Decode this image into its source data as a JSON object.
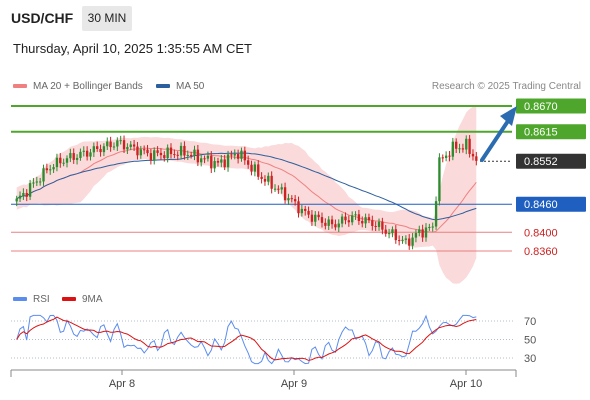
{
  "header": {
    "pair": "USD/CHF",
    "timeframe": "30 MIN",
    "timestamp": "Thursday, April 10, 2025 1:35:55 AM CET",
    "research": "Research © 2025 Trading Central"
  },
  "legend": {
    "ma20": "MA 20 + Bollinger Bands",
    "ma50": "MA 50",
    "rsi": "RSI",
    "rsi_ma": "9MA"
  },
  "colors": {
    "ma20": "#f08080",
    "ma50": "#2c5f9e",
    "band": "#fadadb",
    "up": "#2e8b2e",
    "down": "#cc2222",
    "resistance": "#4ea72c",
    "support": "#1f5fbf",
    "target_line": "#e88080",
    "current": "#333333",
    "arrow": "#2b6cb0",
    "rsi": "#5b8def",
    "rsi_ma": "#dd1111"
  },
  "chart_data": [
    {
      "type": "candlestick",
      "title": "USD/CHF",
      "timeframe": "30 MIN",
      "x_ticks": [
        "Apr 8",
        "Apr 9",
        "Apr 10"
      ],
      "ylim": [
        0.8335,
        0.8695
      ],
      "levels": [
        {
          "value": 0.867,
          "label": "0.8670",
          "kind": "resistance"
        },
        {
          "value": 0.8615,
          "label": "0.8615",
          "kind": "resistance"
        },
        {
          "value": 0.8552,
          "label": "0.8552",
          "kind": "current"
        },
        {
          "value": 0.846,
          "label": "0.8460",
          "kind": "pivot"
        },
        {
          "value": 0.84,
          "label": "0.8400",
          "kind": "support"
        },
        {
          "value": 0.836,
          "label": "0.8360",
          "kind": "support"
        }
      ],
      "series": [
        {
          "name": "MA 20 + Bollinger Bands"
        },
        {
          "name": "MA 50"
        }
      ]
    },
    {
      "type": "line",
      "ylim": [
        20,
        80
      ],
      "y_ticks": [
        "70",
        "50",
        "30"
      ],
      "series": [
        {
          "name": "RSI"
        },
        {
          "name": "9MA"
        }
      ]
    }
  ]
}
